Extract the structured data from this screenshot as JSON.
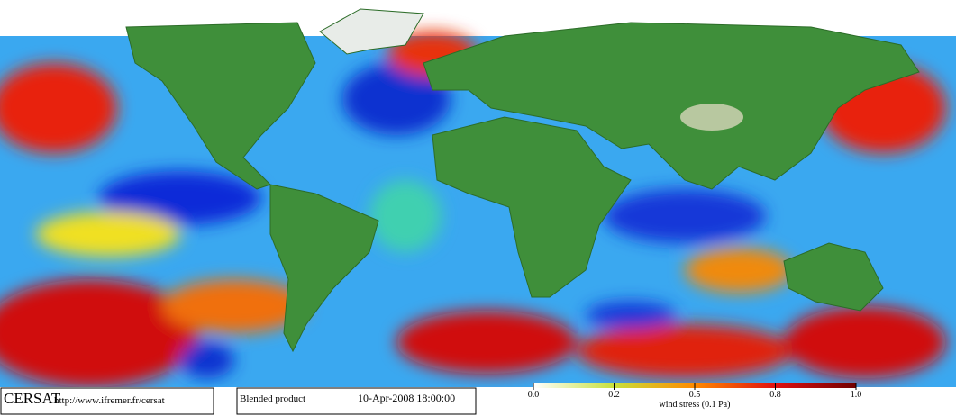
{
  "footer": {
    "logo": "CERSAT",
    "url": "http://www.ifremer.fr/cersat",
    "product": "Blended product",
    "date": "10-Apr-2008 18:00:00"
  },
  "colorbar": {
    "ticks": [
      {
        "value": 0,
        "label": "0.0"
      },
      0.2,
      0.5,
      0.8,
      {
        "value": 1,
        "label": "1.0"
      }
    ],
    "label": "wind stress (0.1 Pa)"
  }
}
